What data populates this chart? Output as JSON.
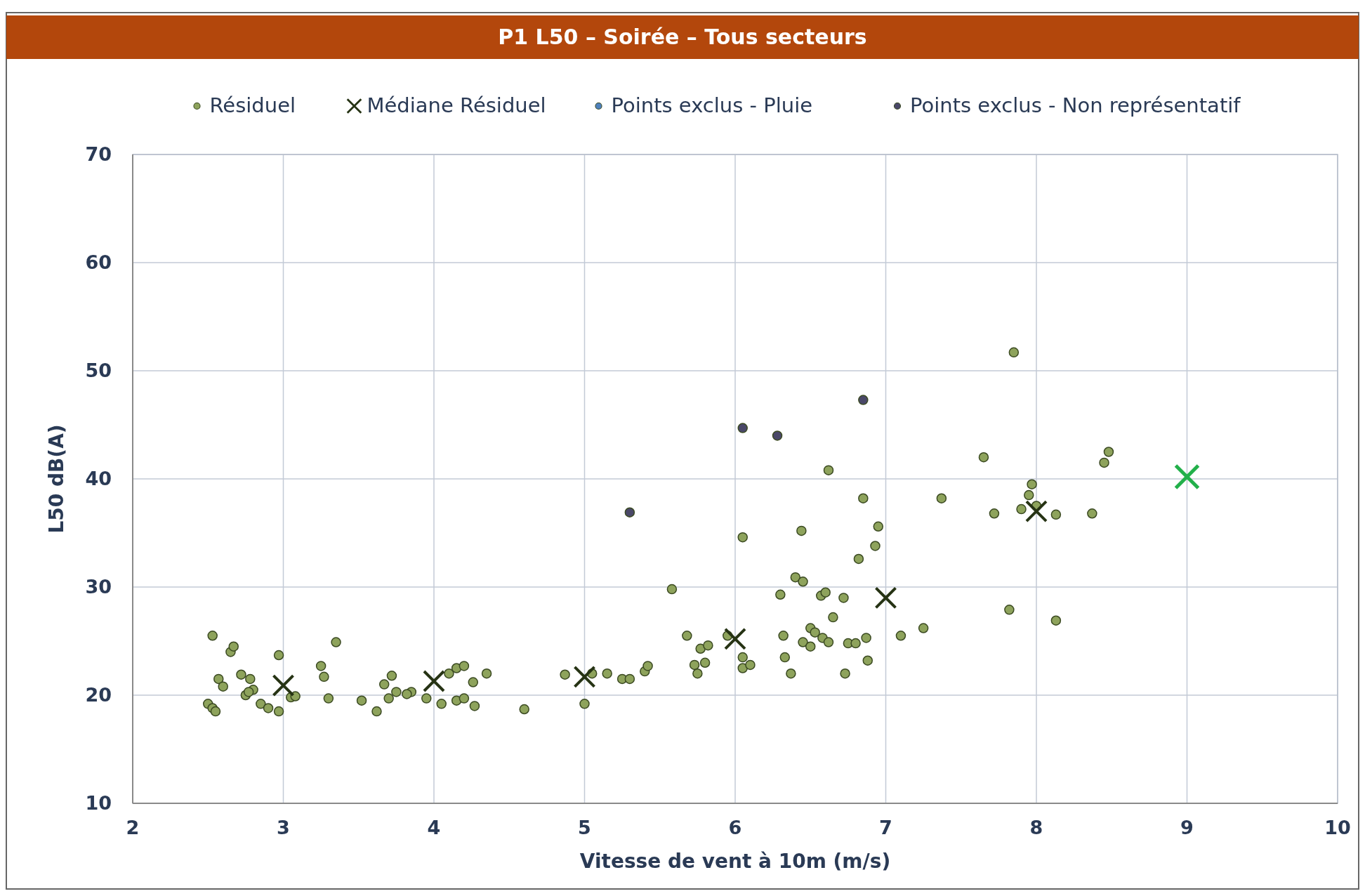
{
  "chart_data": {
    "type": "scatter",
    "title": "P1 L50 – Soirée – Tous secteurs",
    "xlabel": "Vitesse de vent à 10m (m/s)",
    "ylabel": "L50 dB(A)",
    "xlim": [
      2,
      10
    ],
    "xticks": [
      2,
      3,
      4,
      5,
      6,
      7,
      8,
      9,
      10
    ],
    "ylim": [
      10,
      70
    ],
    "yticks": [
      10,
      20,
      30,
      40,
      50,
      60,
      70
    ],
    "grid": true,
    "legend": "top",
    "series": [
      {
        "name": "Résiduel",
        "color": "#8ea35c",
        "marker": "circle",
        "x": [
          2.53,
          2.5,
          2.53,
          2.55,
          2.57,
          2.6,
          2.65,
          2.67,
          2.72,
          2.75,
          2.78,
          2.8,
          2.77,
          2.85,
          2.9,
          2.97,
          2.97,
          3.05,
          3.08,
          3.25,
          3.27,
          3.3,
          3.35,
          3.52,
          3.62,
          3.67,
          3.7,
          3.72,
          3.75,
          3.85,
          3.82,
          3.95,
          4.05,
          4.1,
          4.15,
          4.2,
          4.15,
          4.2,
          4.27,
          4.26,
          4.35,
          4.6,
          4.87,
          5.0,
          5.05,
          5.15,
          5.25,
          5.3,
          5.4,
          5.42,
          5.58,
          5.68,
          5.73,
          5.75,
          5.77,
          5.82,
          5.8,
          5.95,
          6.05,
          6.05,
          6.1,
          6.05,
          6.3,
          6.32,
          6.33,
          6.37,
          6.4,
          6.45,
          6.44,
          6.45,
          6.5,
          6.5,
          6.53,
          6.57,
          6.58,
          6.6,
          6.62,
          6.62,
          6.65,
          6.72,
          6.73,
          6.75,
          6.8,
          6.82,
          6.85,
          6.87,
          6.88,
          6.93,
          6.95,
          7.1,
          7.25,
          7.37,
          7.65,
          7.72,
          7.82,
          7.85,
          7.9,
          7.95,
          7.97,
          8.0,
          8.13,
          8.13,
          8.37,
          8.45,
          8.48
        ],
        "values": [
          25.5,
          19.2,
          18.8,
          18.5,
          21.5,
          20.8,
          24,
          24.5,
          21.9,
          20,
          21.5,
          20.5,
          20.3,
          19.2,
          18.8,
          18.5,
          23.7,
          19.8,
          19.9,
          22.7,
          21.7,
          19.7,
          24.9,
          19.5,
          18.5,
          21,
          19.7,
          21.8,
          20.3,
          20.3,
          20.1,
          19.7,
          19.2,
          22,
          22.5,
          22.7,
          19.5,
          19.7,
          19,
          21.2,
          22,
          18.7,
          21.9,
          19.2,
          22,
          22,
          21.5,
          21.5,
          22.2,
          22.7,
          29.8,
          25.5,
          22.8,
          22,
          24.3,
          24.6,
          23,
          25.5,
          23.5,
          22.5,
          22.8,
          34.6,
          29.3,
          25.5,
          23.5,
          22,
          30.9,
          30.5,
          35.2,
          24.9,
          26.2,
          24.5,
          25.8,
          29.2,
          25.3,
          29.5,
          40.8,
          24.9,
          27.2,
          29,
          22,
          24.8,
          24.8,
          32.6,
          38.2,
          25.3,
          23.2,
          33.8,
          35.6,
          25.5,
          26.2,
          38.2,
          42,
          36.8,
          27.9,
          51.7,
          37.2,
          38.5,
          39.5,
          37.5,
          36.7,
          26.9,
          36.8,
          41.5,
          42.5
        ]
      },
      {
        "name": "Médiane Résiduel",
        "color": "#263314",
        "marker": "cross",
        "x": [
          3,
          4,
          5,
          6,
          7,
          8
        ],
        "values": [
          20.9,
          21.3,
          21.7,
          25.2,
          29,
          37
        ]
      },
      {
        "name": "Points exclus - Pluie",
        "color": "#4f81bd",
        "marker": "circle"
      },
      {
        "name": "Points exclus - Non représentatif",
        "color": "#4a4868",
        "marker": "circle",
        "x": [
          5.3,
          6.05,
          6.28,
          6.85
        ],
        "values": [
          36.9,
          44.7,
          44,
          47.3
        ]
      },
      {
        "color": "#22b04a",
        "marker": "cross",
        "x": [
          9
        ],
        "values": [
          40.2
        ]
      }
    ]
  }
}
